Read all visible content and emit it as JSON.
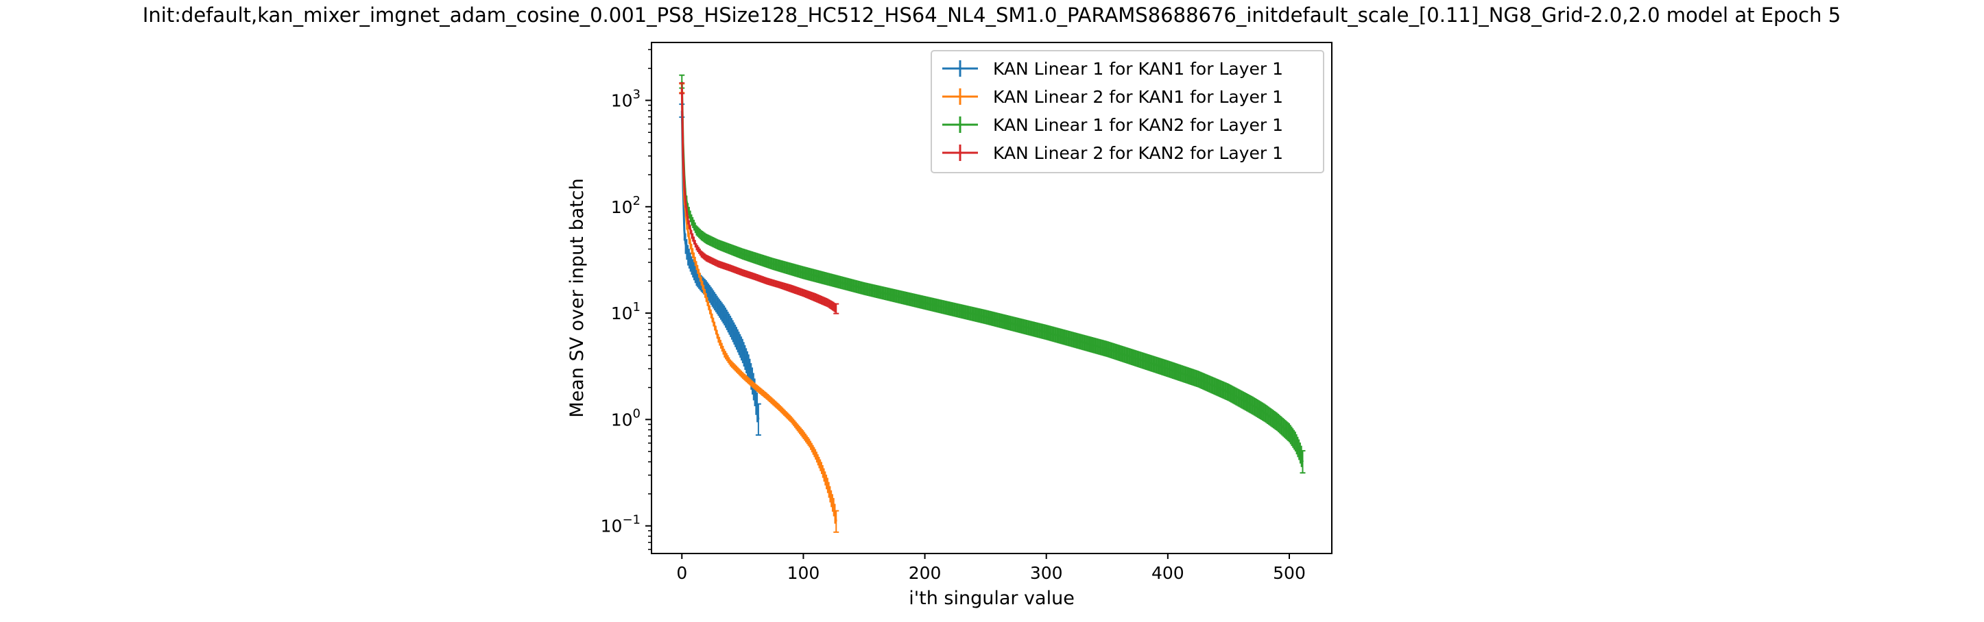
{
  "chart_data": {
    "type": "line",
    "title": "Init:default,kan_mixer_imgnet_adam_cosine_0.001_PS8_HSize128_HC512_HS64_NL4_SM1.0_PARAMS8688676_initdefault_scale_[0.11]_NG8_Grid-2.0,2.0 model at Epoch 5",
    "xlabel": "i'th singular value",
    "ylabel": "Mean SV over input batch",
    "xlim": [
      -25,
      535
    ],
    "ylim": [
      0.055,
      3500
    ],
    "yscale": "log",
    "grid": false,
    "legend_position": "top-right",
    "error_bars": true,
    "x_ticks": [
      0,
      100,
      200,
      300,
      400,
      500
    ],
    "x_tick_labels": [
      "0",
      "100",
      "200",
      "300",
      "400",
      "500"
    ],
    "y_ticks": [
      0.1,
      1,
      10,
      100,
      1000
    ],
    "y_tick_labels": [
      {
        "base": "10",
        "exp": "−1"
      },
      {
        "base": "10",
        "exp": "0"
      },
      {
        "base": "10",
        "exp": "1"
      },
      {
        "base": "10",
        "exp": "2"
      },
      {
        "base": "10",
        "exp": "3"
      }
    ],
    "series": [
      {
        "name": "KAN Linear 1 for KAN1 for Layer 1",
        "color": "#1f77b4",
        "x": [
          0,
          1,
          2,
          3,
          5,
          8,
          12,
          16,
          20,
          25,
          30,
          35,
          40,
          45,
          50,
          55,
          58,
          60,
          61,
          62,
          63
        ],
        "y": [
          800,
          150,
          60,
          45,
          35,
          28,
          22,
          19,
          17,
          14,
          11.5,
          9.5,
          7.5,
          5.8,
          4.4,
          3.1,
          2.3,
          1.8,
          1.5,
          1.3,
          1.0
        ],
        "err": [
          0.15,
          0.25,
          0.25,
          0.25,
          0.25,
          0.22,
          0.22,
          0.2,
          0.2,
          0.22,
          0.22,
          0.24,
          0.26,
          0.28,
          0.3,
          0.32,
          0.34,
          0.35,
          0.36,
          0.38,
          0.4
        ]
      },
      {
        "name": "KAN Linear 2 for KAN1 for Layer 1",
        "color": "#ff7f0e",
        "x": [
          0,
          1,
          2,
          4,
          6,
          8,
          12,
          16,
          20,
          25,
          30,
          35,
          40,
          50,
          60,
          70,
          80,
          90,
          100,
          105,
          110,
          115,
          120,
          123,
          125,
          126,
          127
        ],
        "y": [
          1300,
          250,
          120,
          70,
          50,
          40,
          28,
          20,
          14,
          9,
          5.8,
          4.2,
          3.4,
          2.6,
          2.05,
          1.65,
          1.3,
          1.0,
          0.72,
          0.6,
          0.47,
          0.35,
          0.24,
          0.18,
          0.15,
          0.13,
          0.11
        ],
        "err": [
          0.1,
          0.15,
          0.15,
          0.15,
          0.12,
          0.12,
          0.1,
          0.1,
          0.1,
          0.1,
          0.1,
          0.1,
          0.08,
          0.08,
          0.08,
          0.08,
          0.08,
          0.08,
          0.1,
          0.1,
          0.12,
          0.14,
          0.18,
          0.2,
          0.22,
          0.24,
          0.26
        ]
      },
      {
        "name": "KAN Linear 1 for KAN2 for Layer 1",
        "color": "#2ca02c",
        "x": [
          0,
          1,
          2,
          3,
          5,
          8,
          12,
          16,
          20,
          30,
          50,
          75,
          100,
          150,
          200,
          250,
          300,
          350,
          400,
          425,
          450,
          470,
          480,
          490,
          500,
          505,
          508,
          510,
          511
        ],
        "y": [
          1500,
          400,
          200,
          130,
          95,
          75,
          60,
          54,
          50,
          44,
          36,
          29,
          24,
          17,
          12.5,
          9.2,
          6.6,
          4.6,
          3.0,
          2.4,
          1.8,
          1.35,
          1.15,
          0.95,
          0.75,
          0.62,
          0.52,
          0.45,
          0.4
        ],
        "err": [
          0.15,
          0.15,
          0.15,
          0.15,
          0.14,
          0.13,
          0.12,
          0.12,
          0.12,
          0.12,
          0.13,
          0.14,
          0.15,
          0.15,
          0.16,
          0.17,
          0.18,
          0.19,
          0.2,
          0.2,
          0.21,
          0.22,
          0.22,
          0.22,
          0.23,
          0.24,
          0.25,
          0.26,
          0.27
        ]
      },
      {
        "name": "KAN Linear 2 for KAN2 for Layer 1",
        "color": "#d62728",
        "x": [
          0,
          1,
          2,
          3,
          5,
          8,
          12,
          16,
          20,
          30,
          40,
          50,
          60,
          70,
          80,
          90,
          100,
          110,
          120,
          125,
          127
        ],
        "y": [
          1300,
          300,
          160,
          110,
          75,
          55,
          42,
          36,
          33,
          29,
          26.5,
          24,
          22,
          20,
          18.5,
          17,
          15.5,
          14,
          12.5,
          11.5,
          11
        ],
        "err": [
          0.12,
          0.12,
          0.12,
          0.12,
          0.1,
          0.1,
          0.08,
          0.08,
          0.08,
          0.08,
          0.08,
          0.08,
          0.08,
          0.08,
          0.08,
          0.09,
          0.09,
          0.1,
          0.1,
          0.11,
          0.11
        ]
      }
    ]
  }
}
